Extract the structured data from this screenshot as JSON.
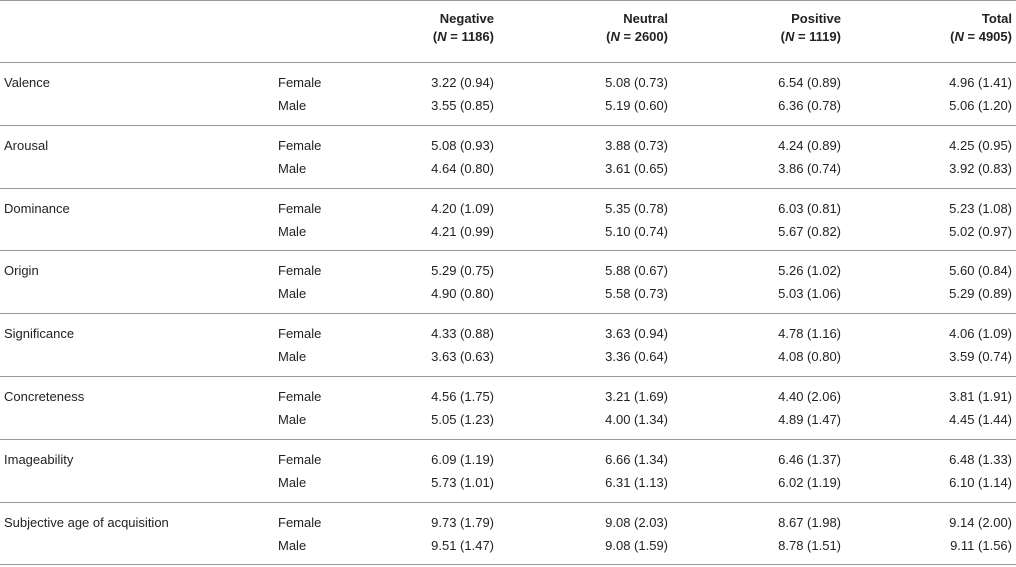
{
  "header": {
    "columns": [
      {
        "label": "Negative",
        "n_label": "N",
        "n_value": " = 1186"
      },
      {
        "label": "Neutral",
        "n_label": "N",
        "n_value": " = 2600"
      },
      {
        "label": "Positive",
        "n_label": "N",
        "n_value": " = 1119"
      },
      {
        "label": "Total",
        "n_label": "N",
        "n_value": " = 4905"
      }
    ]
  },
  "rows": [
    {
      "variable": "Valence",
      "female": {
        "gender": "Female",
        "values": [
          "3.22 (0.94)",
          "5.08 (0.73)",
          "6.54 (0.89)",
          "4.96 (1.41)"
        ]
      },
      "male": {
        "gender": "Male",
        "values": [
          "3.55 (0.85)",
          "5.19 (0.60)",
          "6.36 (0.78)",
          "5.06 (1.20)"
        ]
      }
    },
    {
      "variable": "Arousal",
      "female": {
        "gender": "Female",
        "values": [
          "5.08 (0.93)",
          "3.88 (0.73)",
          "4.24 (0.89)",
          "4.25 (0.95)"
        ]
      },
      "male": {
        "gender": "Male",
        "values": [
          "4.64 (0.80)",
          "3.61 (0.65)",
          "3.86 (0.74)",
          "3.92 (0.83)"
        ]
      }
    },
    {
      "variable": "Dominance",
      "female": {
        "gender": "Female",
        "values": [
          "4.20 (1.09)",
          "5.35 (0.78)",
          "6.03 (0.81)",
          "5.23 (1.08)"
        ]
      },
      "male": {
        "gender": "Male",
        "values": [
          "4.21 (0.99)",
          "5.10 (0.74)",
          "5.67 (0.82)",
          "5.02 (0.97)"
        ]
      }
    },
    {
      "variable": "Origin",
      "female": {
        "gender": "Female",
        "values": [
          "5.29 (0.75)",
          "5.88 (0.67)",
          "5.26 (1.02)",
          "5.60 (0.84)"
        ]
      },
      "male": {
        "gender": "Male",
        "values": [
          "4.90 (0.80)",
          "5.58 (0.73)",
          "5.03 (1.06)",
          "5.29 (0.89)"
        ]
      }
    },
    {
      "variable": "Significance",
      "female": {
        "gender": "Female",
        "values": [
          "4.33 (0.88)",
          "3.63 (0.94)",
          "4.78 (1.16)",
          "4.06 (1.09)"
        ]
      },
      "male": {
        "gender": "Male",
        "values": [
          "3.63 (0.63)",
          "3.36 (0.64)",
          "4.08 (0.80)",
          "3.59 (0.74)"
        ]
      }
    },
    {
      "variable": "Concreteness",
      "female": {
        "gender": "Female",
        "values": [
          "4.56 (1.75)",
          "3.21 (1.69)",
          "4.40 (2.06)",
          "3.81 (1.91)"
        ]
      },
      "male": {
        "gender": "Male",
        "values": [
          "5.05 (1.23)",
          "4.00 (1.34)",
          "4.89 (1.47)",
          "4.45 (1.44)"
        ]
      }
    },
    {
      "variable": "Imageability",
      "female": {
        "gender": "Female",
        "values": [
          "6.09 (1.19)",
          "6.66 (1.34)",
          "6.46 (1.37)",
          "6.48 (1.33)"
        ]
      },
      "male": {
        "gender": "Male",
        "values": [
          "5.73 (1.01)",
          "6.31 (1.13)",
          "6.02 (1.19)",
          "6.10 (1.14)"
        ]
      }
    },
    {
      "variable": "Subjective age of acquisition",
      "female": {
        "gender": "Female",
        "values": [
          "9.73 (1.79)",
          "9.08 (2.03)",
          "8.67 (1.98)",
          "9.14 (2.00)"
        ]
      },
      "male": {
        "gender": "Male",
        "values": [
          "9.51 (1.47)",
          "9.08 (1.59)",
          "8.78 (1.51)",
          "9.11 (1.56)"
        ]
      }
    }
  ]
}
